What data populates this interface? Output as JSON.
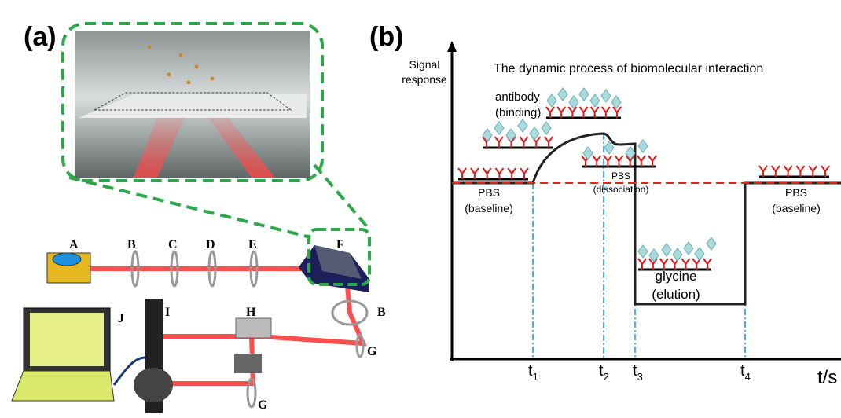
{
  "panel_a": {
    "label": "(a)",
    "components": [
      "A",
      "B",
      "C",
      "D",
      "E",
      "F",
      "B",
      "G",
      "H",
      "I",
      "J",
      "G"
    ]
  },
  "panel_b": {
    "label": "(b)",
    "title": "The dynamic process of biomolecular interaction",
    "y_axis_label": [
      "Signal",
      "response"
    ],
    "stages": [
      {
        "lines": [
          "PBS",
          "(baseline)"
        ]
      },
      {
        "lines": [
          "antibody",
          "(binding)"
        ]
      },
      {
        "lines": [
          "PBS",
          "(dissociation)"
        ]
      },
      {
        "lines": [
          "glycine",
          "(elution)"
        ]
      },
      {
        "lines": [
          "PBS",
          "(baseline)"
        ]
      }
    ],
    "time_marks": [
      {
        "base": "t",
        "sub": "1"
      },
      {
        "base": "t",
        "sub": "2"
      },
      {
        "base": "t",
        "sub": "3"
      },
      {
        "base": "t",
        "sub": "4"
      }
    ],
    "x_axis_label": "t/s"
  }
}
